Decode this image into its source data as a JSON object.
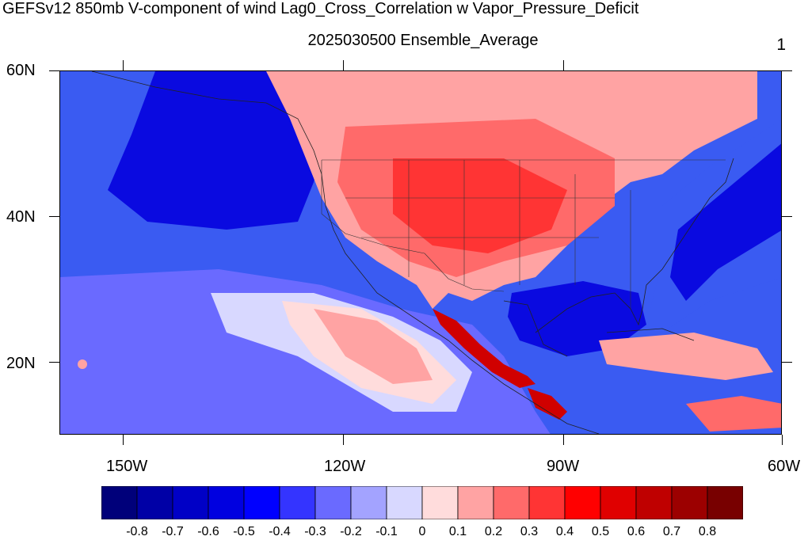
{
  "title": "GEFSv12 850mb V-component of wind Lag0_Cross_Correlation w Vapor_Pressure_Deficit",
  "subtitle": "2025030500 Ensemble_Average",
  "panel_number": "1",
  "lat_labels": [
    "60N",
    "40N",
    "20N"
  ],
  "lon_labels": [
    "150W",
    "120W",
    "90W",
    "60W"
  ],
  "colorbar": {
    "colors": [
      "#00007a",
      "#0000a6",
      "#0000c6",
      "#0000e0",
      "#0000ff",
      "#3434ff",
      "#6a6aff",
      "#a3a3ff",
      "#d8d8ff",
      "#ffdcdc",
      "#ffa3a3",
      "#ff6a6a",
      "#ff3434",
      "#ff0000",
      "#e00000",
      "#bf0000",
      "#9c0000",
      "#780000"
    ],
    "tick_labels": [
      "-0.8",
      "-0.7",
      "-0.6",
      "-0.5",
      "-0.4",
      "-0.3",
      "-0.2",
      "-0.1",
      "0",
      "0.1",
      "0.2",
      "0.3",
      "0.4",
      "0.5",
      "0.6",
      "0.7",
      "0.8"
    ]
  },
  "map": {
    "region": "North America / Eastern Pacific / Gulf of Mexico",
    "lat_range": [
      10,
      60
    ],
    "lon_range": [
      -160,
      -60
    ],
    "field_colors": {
      "ocean_blue": "#3a5bf2",
      "deep_blue": "#0a0ae0",
      "light_blue": "#a3a3ff",
      "pale_blue": "#d8d8ff",
      "pale_red": "#ffdcdc",
      "light_red": "#ffa3a3",
      "mid_red": "#ff6a6a",
      "red": "#ff3434",
      "strong_red": "#d00000"
    }
  }
}
